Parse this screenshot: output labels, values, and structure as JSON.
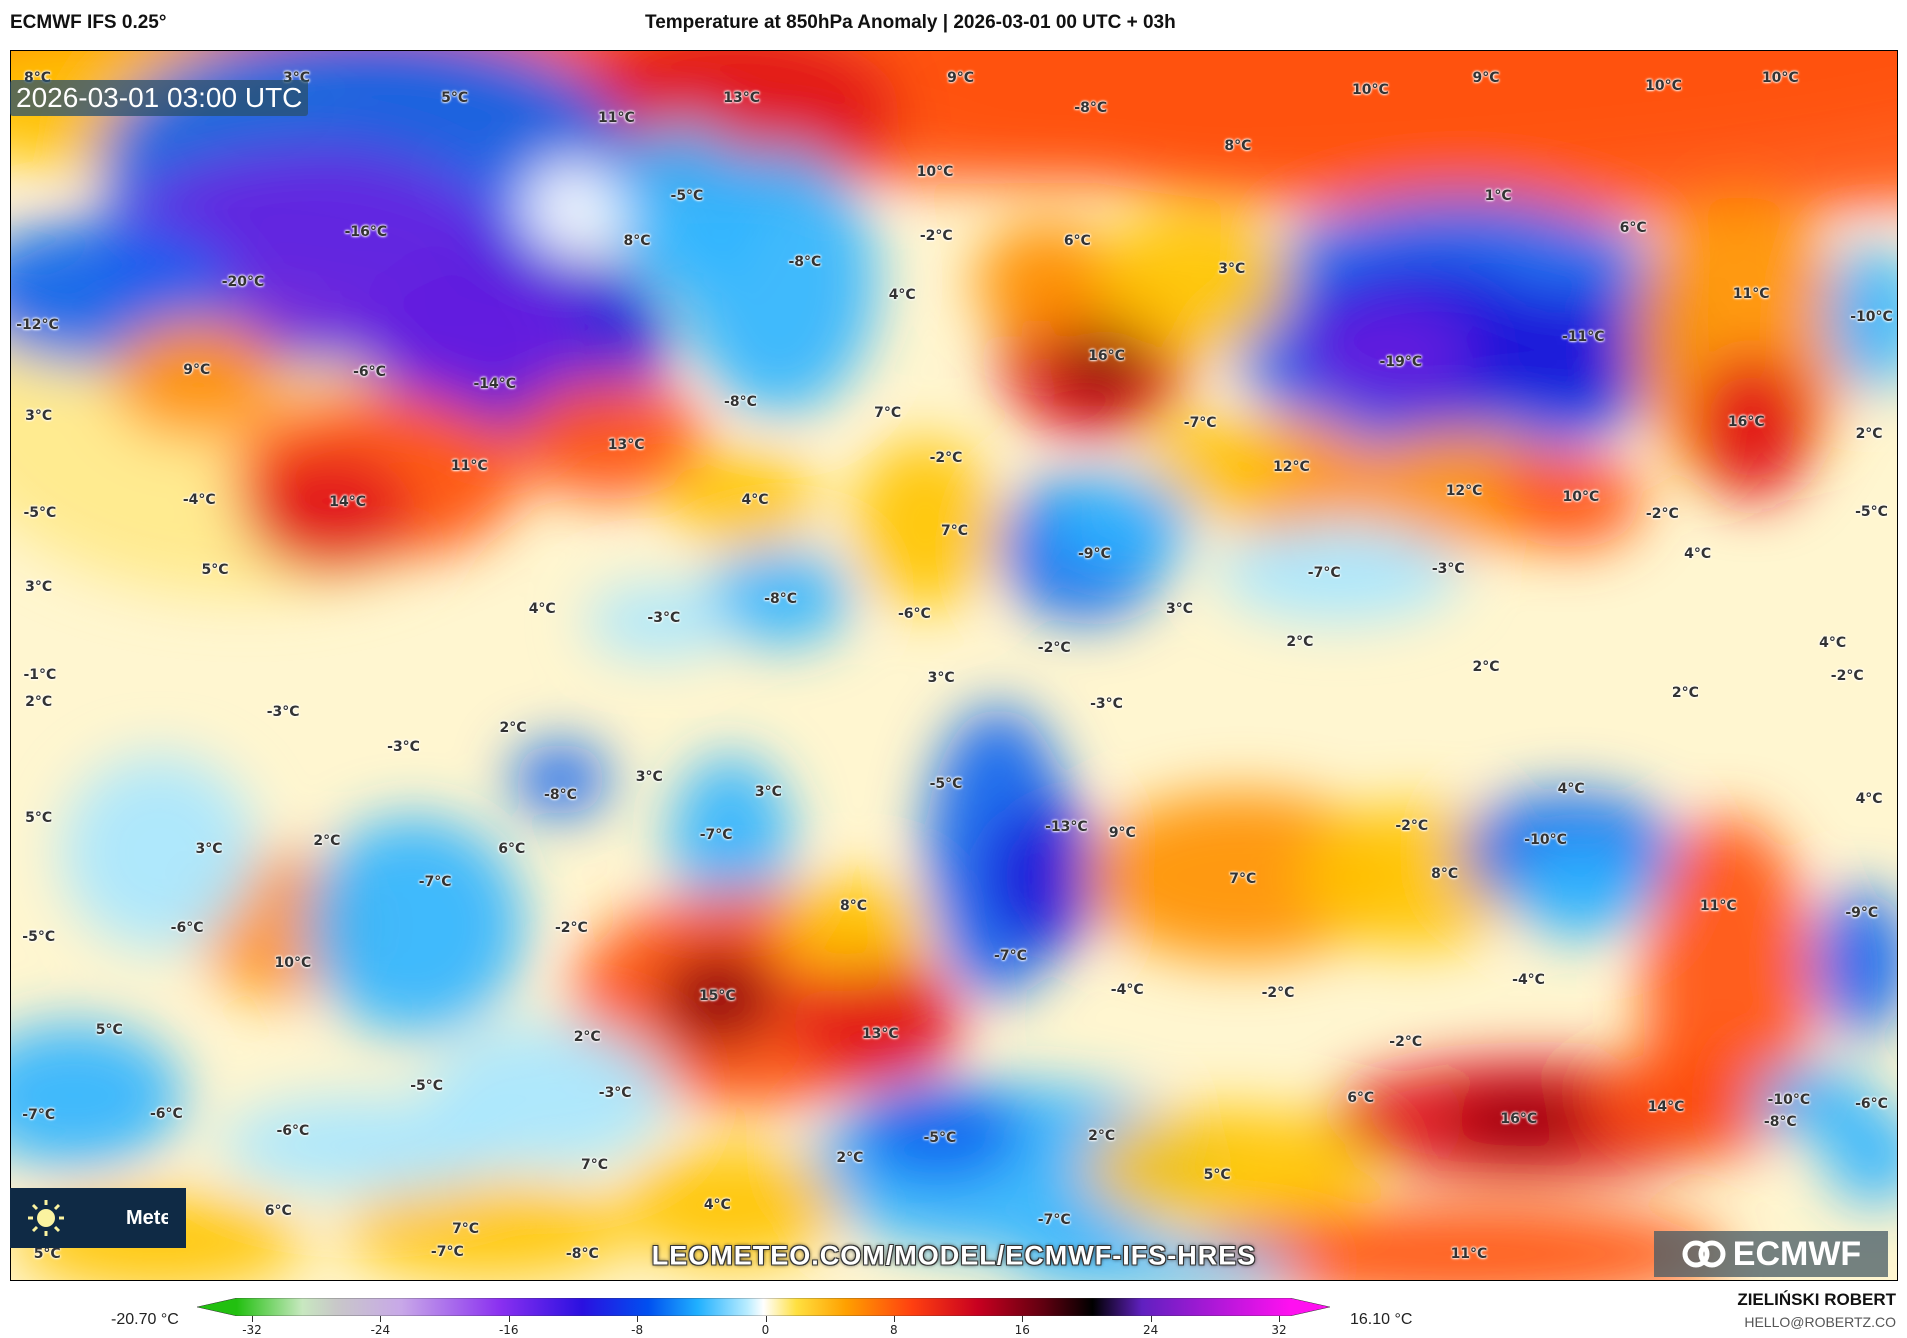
{
  "header": {
    "model": "ECMWF IFS 0.25°",
    "title": "Temperature at 850hPa Anomaly | 2026-03-01 00 UTC + 03h"
  },
  "map": {
    "valid_time": "2026-03-01 03:00 UTC",
    "watermark": "LEOMETEO.COM/MODEL/ECMWF-IFS-HRES",
    "leo_logo": "Meteo",
    "ecmwf_logo": "ECMWF",
    "labels": [
      "8°C",
      "3°C",
      "5°C",
      "11°C",
      "13°C",
      "9°C",
      "-8°C",
      "10°C",
      "9°C",
      "10°C",
      "10°C",
      "8°C",
      "10°C",
      "-5°C",
      "1°C",
      "-16°C",
      "8°C",
      "-2°C",
      "-8°C",
      "6°C",
      "3°C",
      "6°C",
      "-20°C",
      "-12°C",
      "4°C",
      "11°C",
      "-10°C",
      "-11°C",
      "16°C",
      "-19°C",
      "9°C",
      "-6°C",
      "-14°C",
      "-8°C",
      "7°C",
      "3°C",
      "16°C",
      "-7°C",
      "2°C",
      "13°C",
      "11°C",
      "-2°C",
      "12°C",
      "-4°C",
      "14°C",
      "4°C",
      "12°C",
      "10°C",
      "-2°C",
      "-5°C",
      "-5°C",
      "7°C",
      "-9°C",
      "4°C",
      "-7°C",
      "-3°C",
      "5°C",
      "3°C",
      "-8°C",
      "4°C",
      "-3°C",
      "3°C",
      "-6°C",
      "2°C",
      "4°C",
      "2°C",
      "-2°C",
      "-1°C",
      "-2°C",
      "2°C",
      "3°C",
      "-3°C",
      "-3°C",
      "2°C",
      "2°C",
      "-3°C",
      "3°C",
      "3°C",
      "-8°C",
      "-5°C",
      "4°C",
      "4°C",
      "5°C",
      "-13°C",
      "9°C",
      "-2°C",
      "-7°C",
      "3°C",
      "2°C",
      "6°C",
      "-10°C",
      "7°C",
      "8°C",
      "-7°C",
      "11°C",
      "-9°C",
      "8°C",
      "-6°C",
      "-2°C",
      "-5°C",
      "10°C",
      "-7°C",
      "-4°C",
      "-2°C",
      "-4°C",
      "15°C",
      "5°C",
      "13°C",
      "2°C",
      "-2°C",
      "-5°C",
      "-3°C",
      "6°C",
      "16°C",
      "14°C",
      "-10°C",
      "-8°C",
      "-6°C",
      "-7°C",
      "-6°C",
      "-6°C",
      "-5°C",
      "2°C",
      "2°C",
      "7°C",
      "5°C",
      "6°C",
      "4°C",
      "7°C",
      "-7°C",
      "5°C",
      "-7°C",
      "-8°C",
      "11°C"
    ]
  },
  "colorbar": {
    "min_label": "-20.70 °C",
    "max_label": "16.10 °C",
    "ticks": [
      "-32",
      "-24",
      "-16",
      "-8",
      "0",
      "8",
      "16",
      "24",
      "32"
    ],
    "range": [
      -32,
      32
    ],
    "stops": [
      {
        "value": -32,
        "color": "#22c010"
      },
      {
        "value": -28,
        "color": "#c8e8c0"
      },
      {
        "value": -26,
        "color": "#c8c8c8"
      },
      {
        "value": -22,
        "color": "#c8a8e8"
      },
      {
        "value": -16,
        "color": "#8a30f0"
      },
      {
        "value": -11,
        "color": "#2a10e0"
      },
      {
        "value": -7,
        "color": "#0050f0"
      },
      {
        "value": -4,
        "color": "#20b0ff"
      },
      {
        "value": -1,
        "color": "#b8ecff"
      },
      {
        "value": 0,
        "color": "#ffffff"
      },
      {
        "value": 2,
        "color": "#ffe040"
      },
      {
        "value": 5,
        "color": "#ffa000"
      },
      {
        "value": 9,
        "color": "#ff4010"
      },
      {
        "value": 13,
        "color": "#c80020"
      },
      {
        "value": 17,
        "color": "#600010"
      },
      {
        "value": 20,
        "color": "#000000"
      },
      {
        "value": 23,
        "color": "#6020c0"
      },
      {
        "value": 32,
        "color": "#ff10f0"
      }
    ]
  },
  "credits": {
    "author": "ZIELIŃSKI ROBERT",
    "email": "HELLO@ROBERTZ.CO"
  }
}
